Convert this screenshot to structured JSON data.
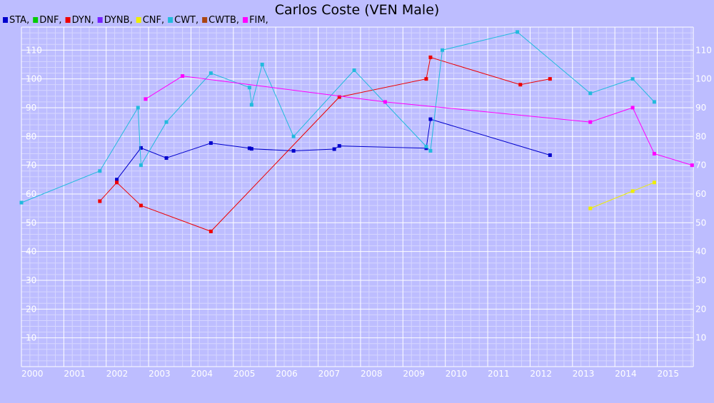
{
  "chart_data": {
    "type": "line",
    "title": "Carlos Coste (VEN Male)",
    "xlabel": "",
    "ylabel": "",
    "xlim": [
      2000.0,
      2015.85
    ],
    "ylim": [
      0,
      118
    ],
    "x_ticks": [
      "2000",
      "2001",
      "2002",
      "2003",
      "2004",
      "2005",
      "2006",
      "2007",
      "2008",
      "2009",
      "2010",
      "2011",
      "2012",
      "2013",
      "2014",
      "2015"
    ],
    "y_ticks": [
      10,
      20,
      30,
      40,
      50,
      60,
      70,
      80,
      90,
      100,
      110
    ],
    "grid": true,
    "legend_position": "top-left",
    "legend": [
      {
        "label": "STA,",
        "color": "#0000cc"
      },
      {
        "label": "DNF,",
        "color": "#00cc00"
      },
      {
        "label": "DYN,",
        "color": "#ee0000"
      },
      {
        "label": "DYNB,",
        "color": "#7722ff"
      },
      {
        "label": "CNF,",
        "color": "#eeee00"
      },
      {
        "label": "CWT,",
        "color": "#22bbdd"
      },
      {
        "label": "CWTB,",
        "color": "#aa4411"
      },
      {
        "label": "FIM,",
        "color": "#ff00ff"
      }
    ],
    "series": [
      {
        "color": "#0000cc",
        "points": [
          [
            2002.25,
            65
          ],
          [
            2002.82,
            76
          ],
          [
            2003.42,
            72.5
          ],
          [
            2004.47,
            77.7
          ],
          [
            2005.38,
            75.9
          ],
          [
            2005.43,
            75.7
          ],
          [
            2006.42,
            75
          ],
          [
            2007.38,
            75.6
          ],
          [
            2007.5,
            76.7
          ],
          [
            2009.55,
            75.9
          ],
          [
            2009.65,
            86
          ],
          [
            2012.47,
            73.5
          ]
        ]
      },
      {
        "color": "#ee0000",
        "points": [
          [
            2001.85,
            57.5
          ],
          [
            2002.25,
            64
          ],
          [
            2002.82,
            56
          ],
          [
            2004.47,
            47
          ],
          [
            2007.5,
            93.7
          ],
          [
            2009.55,
            100
          ],
          [
            2009.65,
            107.5
          ],
          [
            2011.77,
            98
          ],
          [
            2012.47,
            100
          ]
        ]
      },
      {
        "color": "#22bbdd",
        "points": [
          [
            2000.0,
            57
          ],
          [
            2001.85,
            68
          ],
          [
            2002.75,
            90
          ],
          [
            2002.82,
            70
          ],
          [
            2003.42,
            85
          ],
          [
            2004.47,
            102
          ],
          [
            2005.38,
            97
          ],
          [
            2005.43,
            91
          ],
          [
            2005.68,
            105
          ],
          [
            2006.42,
            80
          ],
          [
            2007.85,
            103
          ],
          [
            2009.55,
            76.5
          ],
          [
            2009.65,
            75
          ],
          [
            2009.93,
            110
          ],
          [
            2011.7,
            116.3
          ],
          [
            2013.42,
            95
          ],
          [
            2014.42,
            100
          ],
          [
            2014.93,
            92
          ]
        ]
      },
      {
        "color": "#eeee00",
        "points": [
          [
            2013.42,
            55
          ],
          [
            2014.42,
            61
          ],
          [
            2014.93,
            64
          ]
        ]
      },
      {
        "color": "#ff00ff",
        "points": [
          [
            2002.93,
            93
          ],
          [
            2003.8,
            101
          ],
          [
            2008.58,
            92
          ],
          [
            2013.42,
            85
          ],
          [
            2014.42,
            90
          ],
          [
            2014.93,
            74
          ],
          [
            2015.82,
            70
          ]
        ]
      }
    ]
  }
}
